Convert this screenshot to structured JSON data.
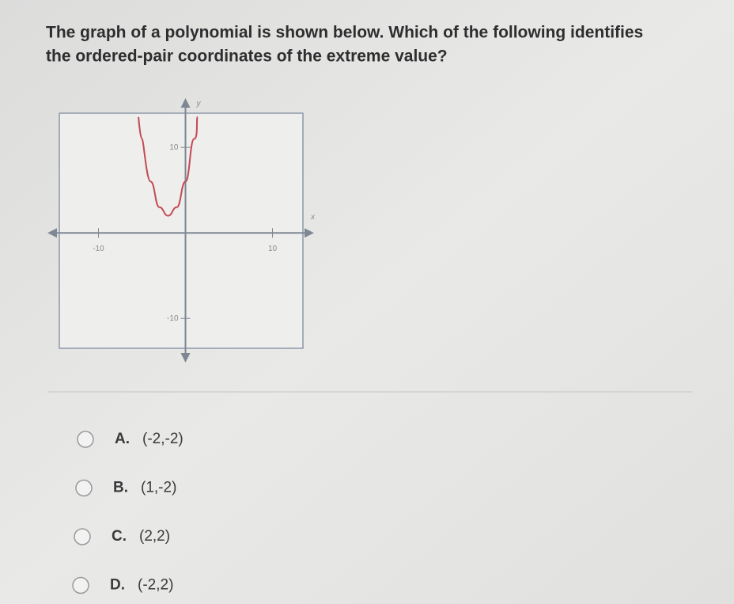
{
  "question": [
    "The graph of a polynomial is shown below. Which of the following identifies",
    "the ordered-pair coordinates of the extreme value?"
  ],
  "chart_data": {
    "type": "line",
    "xlabel": "x",
    "ylabel": "y",
    "x": [
      -5.4,
      -5,
      -4,
      -3,
      -2,
      -1,
      0,
      1,
      1.4
    ],
    "series": [
      {
        "color": "#c44a55",
        "values": [
          13.56,
          11,
          6,
          3,
          2,
          3,
          6,
          11,
          13.56
        ]
      }
    ],
    "xlim": [
      -14.5,
      13.5
    ],
    "ylim": [
      -13.5,
      14
    ],
    "xticks": [
      -10,
      10
    ],
    "yticks": [
      -10,
      10
    ]
  },
  "options": [
    {
      "letter": "A.",
      "text": "(-2,-2)"
    },
    {
      "letter": "B.",
      "text": "(1,-2)"
    },
    {
      "letter": "C.",
      "text": "(2,2)"
    },
    {
      "letter": "D.",
      "text": "(-2,2)"
    }
  ]
}
